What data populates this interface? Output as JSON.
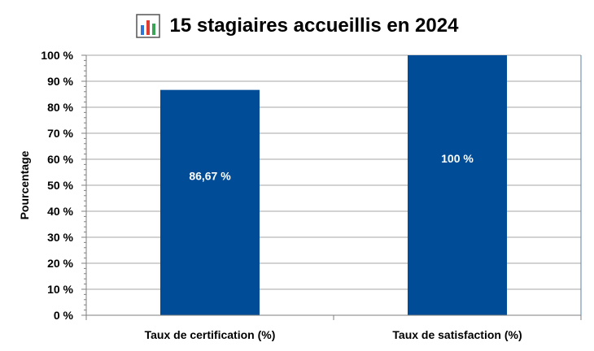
{
  "title": {
    "text": "15 stagiaires accueillis en 2024",
    "icon": "bar-chart-icon"
  },
  "chart_data": {
    "type": "bar",
    "title": "15 stagiaires accueillis en 2024",
    "xlabel": "",
    "ylabel": "Pourcentage",
    "categories": [
      "Taux de certification (%)",
      "Taux de satisfaction (%)"
    ],
    "values": [
      86.67,
      100
    ],
    "data_labels": [
      "86,67 %",
      "100 %"
    ],
    "ylim": [
      0,
      100
    ],
    "yticks": [
      0,
      10,
      20,
      30,
      40,
      50,
      60,
      70,
      80,
      90,
      100
    ],
    "ytick_labels": [
      "0 %",
      "10 %",
      "20 %",
      "30 %",
      "40 %",
      "50 %",
      "60 %",
      "70 %",
      "80 %",
      "90 %",
      "100 %"
    ],
    "grid": true,
    "bar_color": "#004C97",
    "grid_color": "#A6A6A6",
    "axis_color": "#7F7F7F",
    "border_color": "#5B7FA8"
  }
}
